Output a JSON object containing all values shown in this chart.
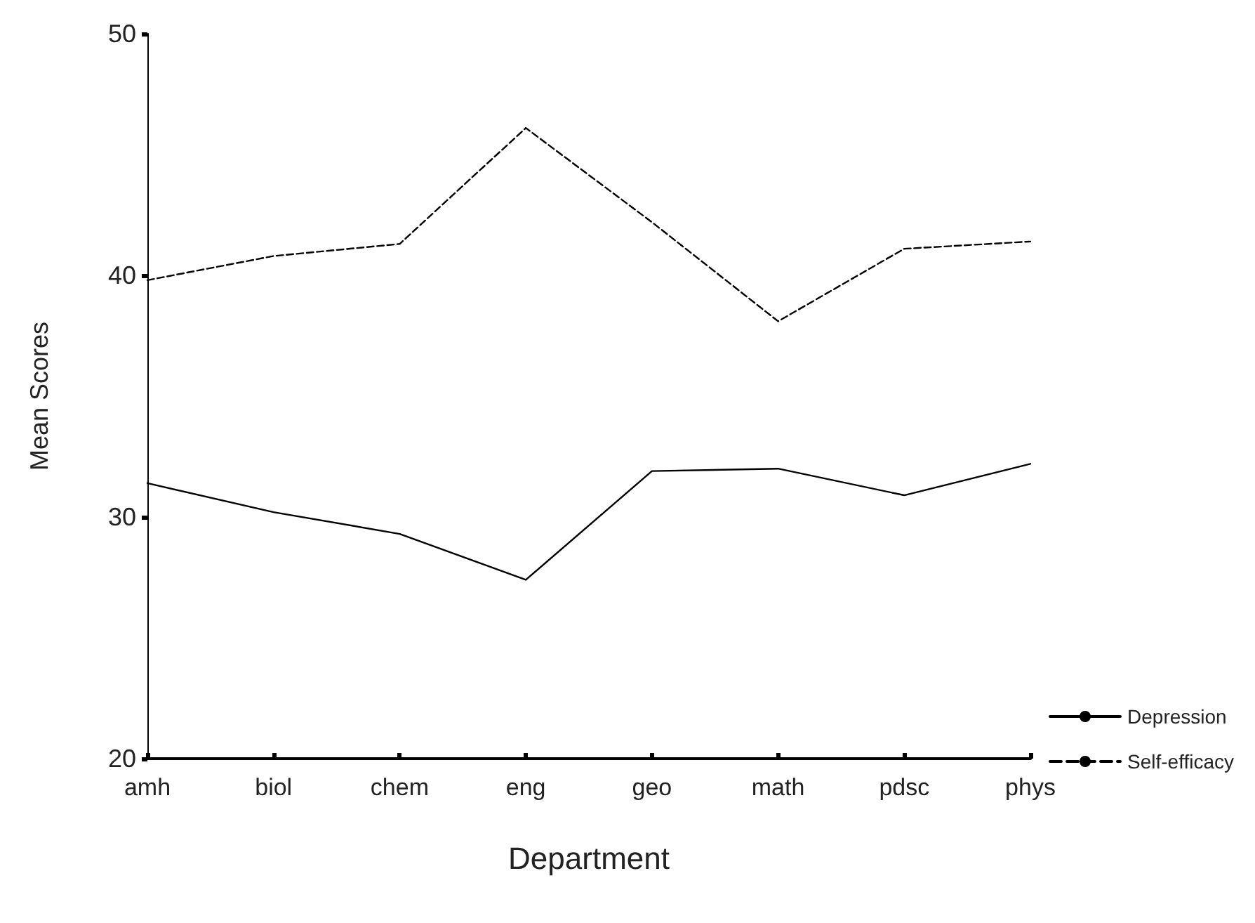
{
  "chart_data": {
    "type": "line",
    "xlabel": "Department",
    "ylabel": "Mean Scores",
    "categories": [
      "amh",
      "biol",
      "chem",
      "eng",
      "geo",
      "math",
      "pdsc",
      "phys"
    ],
    "series": [
      {
        "name": "Depression",
        "color": "#000000",
        "line_style": "solid",
        "values": [
          31.4,
          30.2,
          29.3,
          27.4,
          31.9,
          32.0,
          30.9,
          32.2
        ]
      },
      {
        "name": "Self-efficacy",
        "color": "#000000",
        "line_style": "dashed",
        "values": [
          39.8,
          40.8,
          41.3,
          46.1,
          42.2,
          38.1,
          41.1,
          41.4
        ]
      }
    ],
    "ylim": [
      20,
      50
    ],
    "yticks": [
      20,
      30,
      40,
      50
    ],
    "grid": false,
    "legend": "bottom right",
    "marker": "none"
  }
}
